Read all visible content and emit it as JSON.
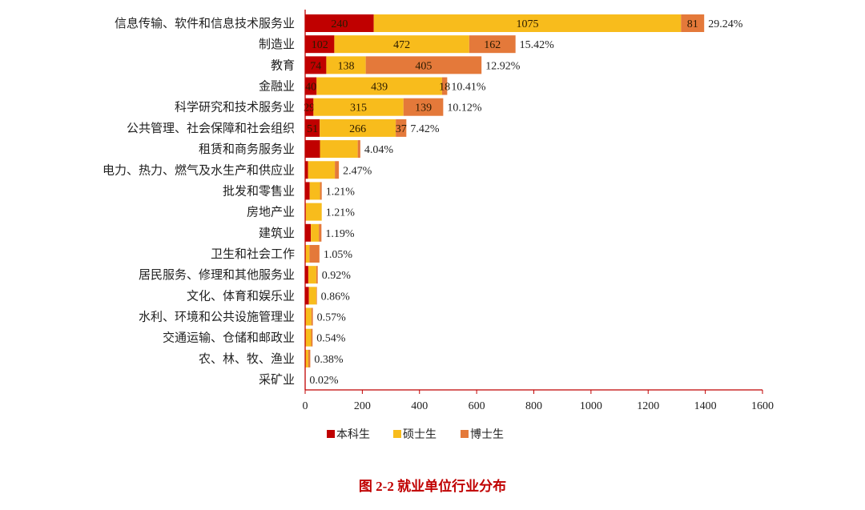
{
  "chart_data": {
    "type": "bar",
    "orientation": "horizontal",
    "stacked": true,
    "title": "图 2-2  就业单位行业分布",
    "xlim": [
      0,
      1600
    ],
    "xticks": [
      0,
      200,
      400,
      600,
      800,
      1000,
      1200,
      1400,
      1600
    ],
    "grid": false,
    "legend_position": "bottom",
    "colors": {
      "本科生": "#c00000",
      "硕士生": "#f8bc1c",
      "博士生": "#e4793a"
    },
    "categories": [
      "信息传输、软件和信息技术服务业",
      "制造业",
      "教育",
      "金融业",
      "科学研究和技术服务业",
      "公共管理、社会保障和社会组织",
      "租赁和商务服务业",
      "电力、热力、燃气及水生产和供应业",
      "批发和零售业",
      "房地产业",
      "建筑业",
      "卫生和社会工作",
      "居民服务、修理和其他服务业",
      "文化、体育和娱乐业",
      "水利、环境和公共设施管理业",
      "交通运输、仓储和邮政业",
      "农、林、牧、渔业",
      "采矿业"
    ],
    "series": [
      {
        "name": "本科生",
        "values": [
          240,
          102,
          74,
          40,
          29,
          51,
          52,
          10,
          16,
          2,
          20,
          0,
          11,
          13,
          1,
          1,
          0,
          0
        ]
      },
      {
        "name": "硕士生",
        "values": [
          1075,
          472,
          138,
          439,
          315,
          266,
          132,
          94,
          36,
          56,
          28,
          15,
          28,
          26,
          21,
          20,
          11,
          1
        ]
      },
      {
        "name": "博士生",
        "values": [
          81,
          162,
          405,
          18,
          139,
          37,
          9,
          14,
          6,
          0,
          9,
          35,
          5,
          2,
          5,
          5,
          7,
          0
        ]
      }
    ],
    "value_labels_shown_rows": [
      0,
      1,
      2,
      3,
      4,
      5
    ],
    "percent_labels": [
      "29.24%",
      "15.42%",
      "12.92%",
      "10.41%",
      "10.12%",
      "7.42%",
      "4.04%",
      "2.47%",
      "1.21%",
      "1.21%",
      "1.19%",
      "1.05%",
      "0.92%",
      "0.86%",
      "0.57%",
      "0.54%",
      "0.38%",
      "0.02%"
    ]
  }
}
